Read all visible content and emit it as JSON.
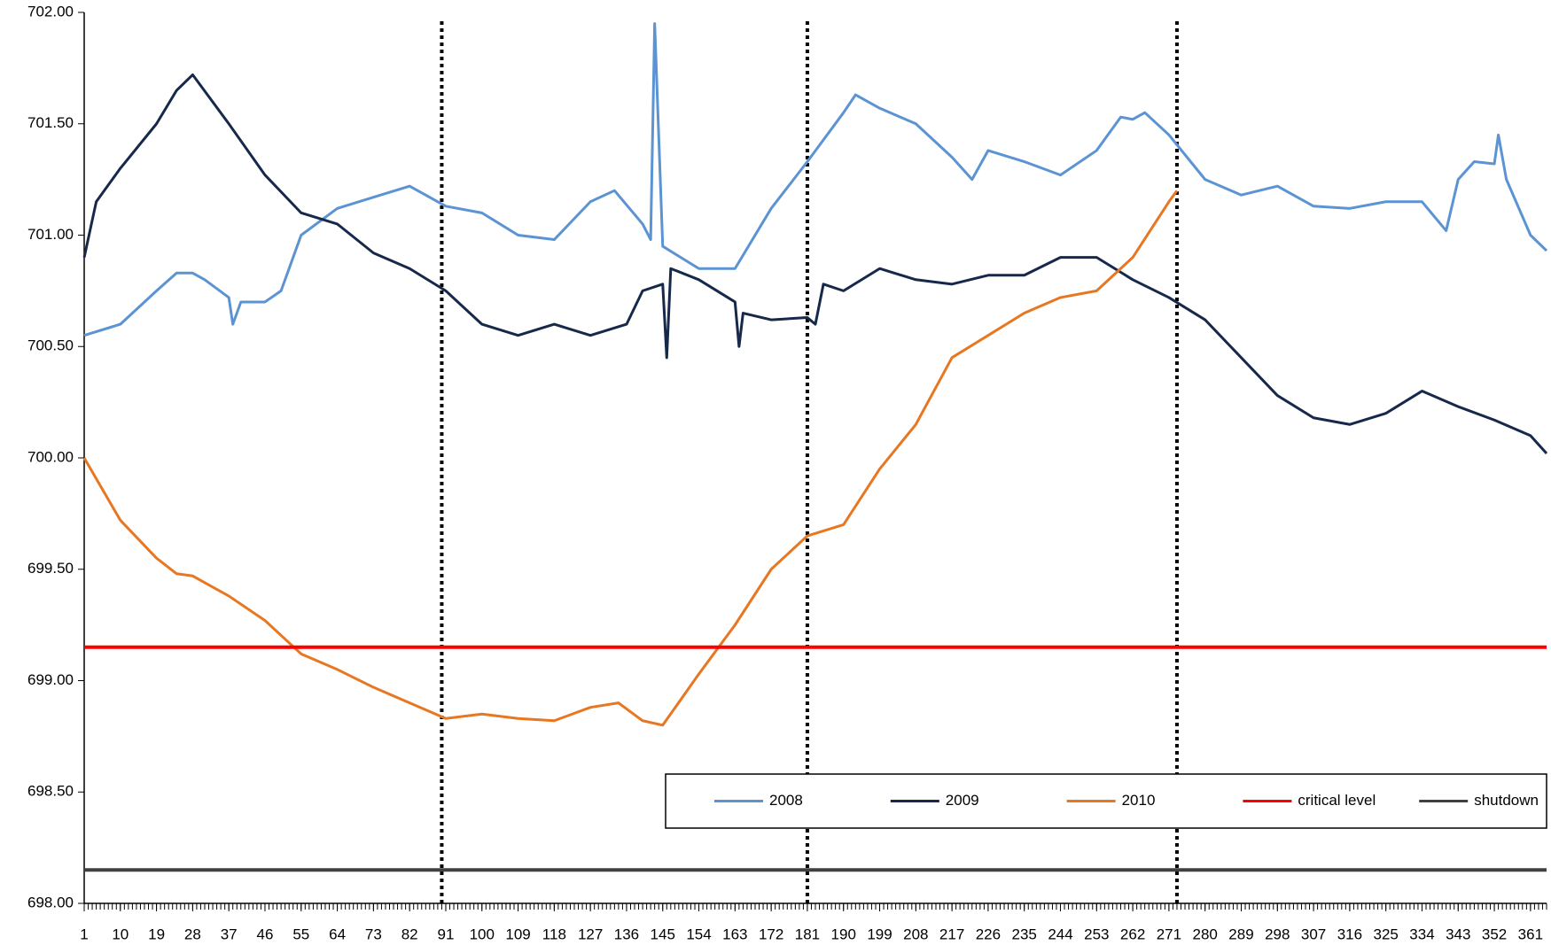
{
  "chart_data": {
    "type": "line",
    "xlim": [
      1,
      365
    ],
    "xticks": [
      1,
      10,
      19,
      28,
      37,
      46,
      55,
      64,
      73,
      82,
      91,
      100,
      109,
      118,
      127,
      136,
      145,
      154,
      163,
      172,
      181,
      190,
      199,
      208,
      217,
      226,
      235,
      244,
      253,
      262,
      271,
      280,
      289,
      298,
      307,
      316,
      325,
      334,
      343,
      352,
      361
    ],
    "ylim": [
      698,
      702
    ],
    "yticks": [
      {
        "value": 698,
        "label": "698.00"
      },
      {
        "value": 698.5,
        "label": "698.50"
      },
      {
        "value": 699,
        "label": "699.00"
      },
      {
        "value": 699.5,
        "label": "699.50"
      },
      {
        "value": 700,
        "label": "700.00"
      },
      {
        "value": 700.5,
        "label": "700.50"
      },
      {
        "value": 701,
        "label": "701.00"
      },
      {
        "value": 701.5,
        "label": "701.50"
      },
      {
        "value": 702,
        "label": "702.00"
      }
    ],
    "vlines": [
      90,
      181,
      273
    ],
    "legend": "bottom-right",
    "series": [
      {
        "name": "2008",
        "color": "#5b93d3",
        "x": [
          1,
          10,
          19,
          24,
          28,
          31,
          37,
          38,
          40,
          46,
          50,
          55,
          64,
          73,
          82,
          91,
          100,
          109,
          118,
          127,
          133,
          140,
          142,
          143,
          145,
          154,
          163,
          172,
          181,
          190,
          193,
          199,
          208,
          217,
          222,
          226,
          235,
          244,
          253,
          259,
          262,
          265,
          271,
          280,
          289,
          298,
          307,
          316,
          325,
          334,
          340,
          343,
          347,
          352,
          353,
          355,
          361,
          365
        ],
        "values": [
          700.55,
          700.6,
          700.75,
          700.83,
          700.83,
          700.8,
          700.72,
          700.6,
          700.7,
          700.7,
          700.75,
          701.0,
          701.12,
          701.17,
          701.22,
          701.13,
          701.1,
          701.0,
          700.98,
          701.15,
          701.2,
          701.05,
          700.98,
          701.95,
          700.95,
          700.85,
          700.85,
          701.12,
          701.33,
          701.55,
          701.63,
          701.57,
          701.5,
          701.35,
          701.25,
          701.38,
          701.33,
          701.27,
          701.38,
          701.53,
          701.52,
          701.55,
          701.45,
          701.25,
          701.18,
          701.22,
          701.13,
          701.12,
          701.15,
          701.15,
          701.02,
          701.25,
          701.33,
          701.32,
          701.45,
          701.25,
          701.0,
          700.93
        ]
      },
      {
        "name": "2009",
        "color": "#17294a",
        "x": [
          1,
          4,
          10,
          19,
          24,
          28,
          37,
          46,
          55,
          64,
          73,
          82,
          91,
          100,
          109,
          118,
          127,
          136,
          140,
          145,
          146,
          147,
          154,
          163,
          164,
          165,
          172,
          181,
          183,
          185,
          190,
          199,
          208,
          217,
          226,
          235,
          244,
          253,
          262,
          271,
          280,
          289,
          298,
          307,
          316,
          325,
          334,
          343,
          352,
          361,
          365
        ],
        "values": [
          700.9,
          701.15,
          701.3,
          701.5,
          701.65,
          701.72,
          701.5,
          701.27,
          701.1,
          701.05,
          700.92,
          700.85,
          700.75,
          700.6,
          700.55,
          700.6,
          700.55,
          700.6,
          700.75,
          700.78,
          700.45,
          700.85,
          700.8,
          700.7,
          700.5,
          700.65,
          700.62,
          700.63,
          700.6,
          700.78,
          700.75,
          700.85,
          700.8,
          700.78,
          700.82,
          700.82,
          700.9,
          700.9,
          700.8,
          700.72,
          700.62,
          700.45,
          700.28,
          700.18,
          700.15,
          700.2,
          700.3,
          700.23,
          700.17,
          700.1,
          700.02
        ]
      },
      {
        "name": "2010",
        "color": "#e87722",
        "x": [
          1,
          10,
          19,
          24,
          28,
          37,
          46,
          55,
          64,
          73,
          82,
          91,
          100,
          109,
          118,
          127,
          134,
          140,
          145,
          154,
          163,
          172,
          181,
          190,
          199,
          208,
          217,
          226,
          235,
          244,
          253,
          262,
          271,
          273
        ],
        "values": [
          700.0,
          699.72,
          699.55,
          699.48,
          699.47,
          699.38,
          699.27,
          699.12,
          699.05,
          698.97,
          698.9,
          698.83,
          698.85,
          698.83,
          698.82,
          698.88,
          698.9,
          698.82,
          698.8,
          699.03,
          699.25,
          699.5,
          699.65,
          699.7,
          699.95,
          700.15,
          700.45,
          700.55,
          700.65,
          700.72,
          700.75,
          700.9,
          701.15,
          701.2
        ]
      },
      {
        "name": "critical level",
        "color": "#ff0000",
        "x": [
          1,
          365
        ],
        "values": [
          699.15,
          699.15
        ]
      },
      {
        "name": "shutdown",
        "color": "#404040",
        "x": [
          1,
          365
        ],
        "values": [
          698.15,
          698.15
        ]
      }
    ]
  }
}
